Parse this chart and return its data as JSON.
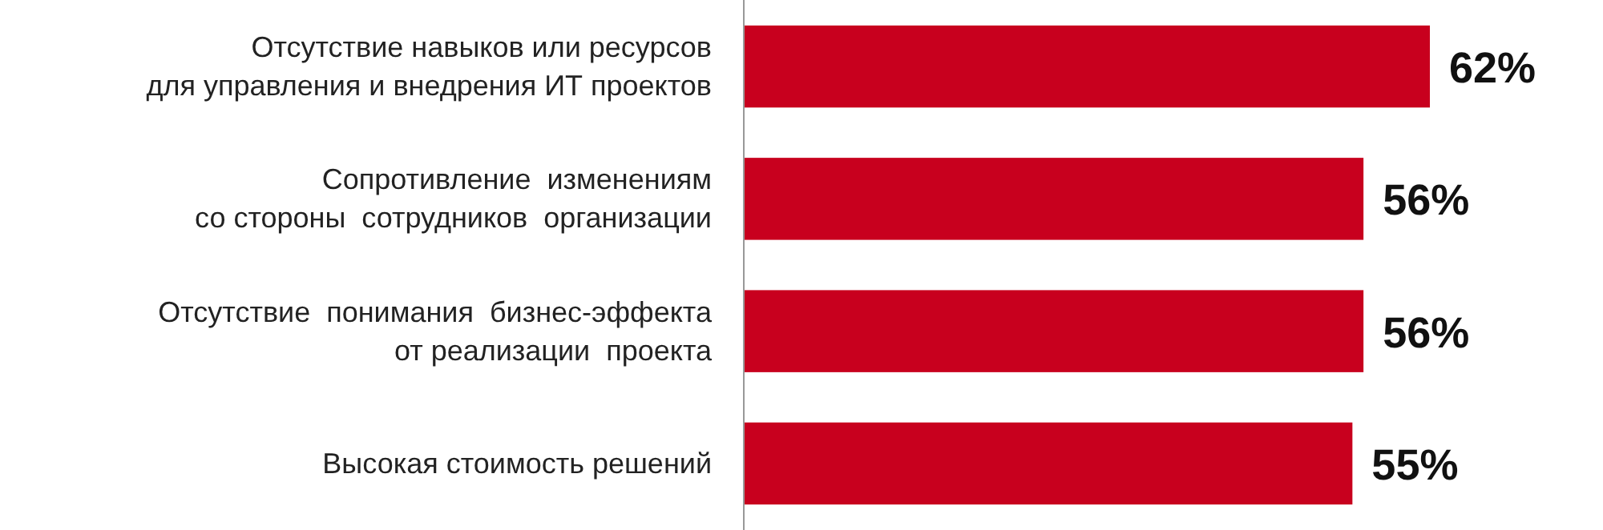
{
  "chart_data": {
    "type": "bar",
    "orientation": "horizontal",
    "categories": [
      "Отсутствие навыков или ресурсов\nдля управления и внедрения ИТ проектов",
      "Сопротивление  изменениям\nсо стороны  сотрудников  организации",
      "Отсутствие  понимания  бизнес-эффекта\nот реализации  проекта",
      "Высокая стоимость решений"
    ],
    "values": [
      62,
      56,
      56,
      55
    ],
    "value_labels": [
      "62%",
      "56%",
      "56%",
      "55%"
    ],
    "color": "#c8001e",
    "tick_labels": "y"
  }
}
